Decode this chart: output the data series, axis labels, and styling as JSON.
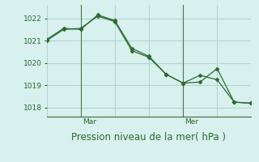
{
  "background_color": "#d8f0ee",
  "grid_color": "#b0d8d0",
  "line_color": "#2d6a2d",
  "marker_color": "#2d6a2d",
  "xlabel": "Pression niveau de la mer( hPa )",
  "yticks": [
    1018,
    1019,
    1020,
    1021,
    1022
  ],
  "ylim": [
    1017.6,
    1022.6
  ],
  "xlim": [
    0,
    12
  ],
  "day_labels": [
    {
      "label": "Mar",
      "x": 2.0
    },
    {
      "label": "Mer",
      "x": 8.0
    }
  ],
  "day_vlines": [
    2.0,
    8.0
  ],
  "line1_x": [
    0,
    1,
    2,
    3,
    4,
    5,
    6,
    7,
    8,
    9,
    10,
    11,
    12
  ],
  "line1_y": [
    1021.05,
    1021.55,
    1021.5,
    1022.15,
    1021.9,
    1020.65,
    1020.3,
    1019.5,
    1019.1,
    1019.15,
    1019.75,
    1018.25,
    1018.2
  ],
  "line2_x": [
    0,
    1,
    2,
    3,
    4,
    5,
    6,
    7,
    8,
    9,
    10,
    11,
    12
  ],
  "line2_y": [
    1021.0,
    1021.5,
    1021.55,
    1022.1,
    1021.85,
    1020.55,
    1020.25,
    1019.5,
    1019.1,
    1019.45,
    1019.25,
    1018.25,
    1018.2
  ],
  "tick_fontsize": 6.5,
  "label_fontsize": 8.5,
  "figsize": [
    3.2,
    2.0
  ],
  "dpi": 100
}
